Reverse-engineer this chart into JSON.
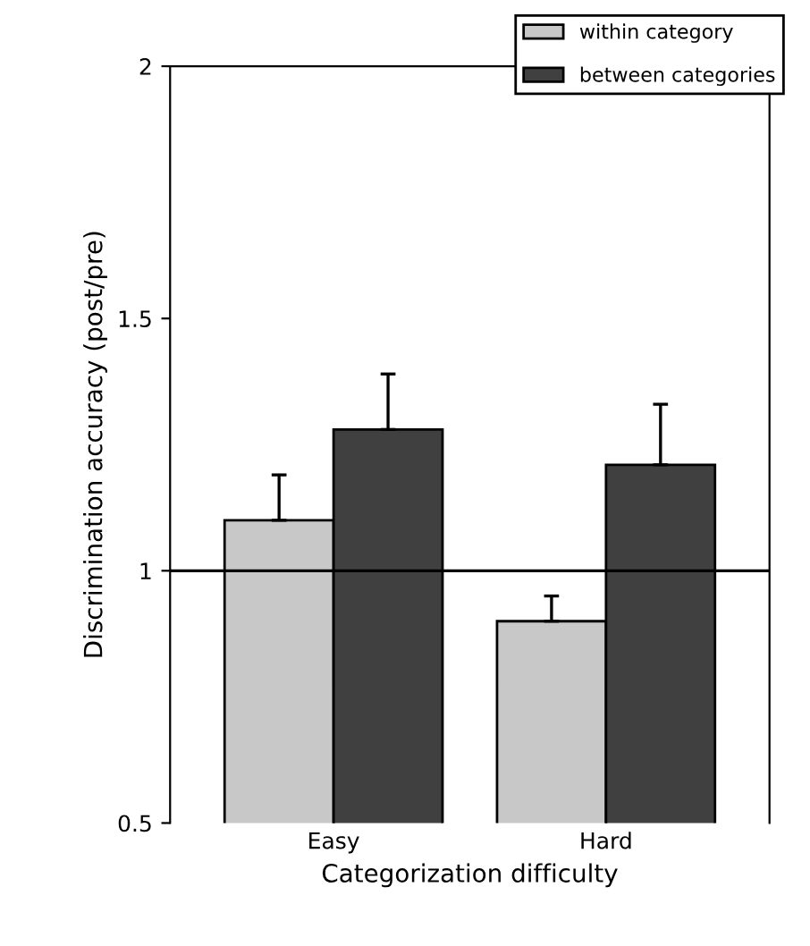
{
  "chart_data": {
    "type": "bar",
    "xlabel": "Categorization difficulty",
    "ylabel": "Discrimination accuracy (post/pre)",
    "categories": [
      "Easy",
      "Hard"
    ],
    "series": [
      {
        "name": "within category",
        "color": "#c8c8c8",
        "values": [
          1.1,
          0.9
        ],
        "errors": [
          [
            1.1,
            1.19
          ],
          [
            0.9,
            0.95
          ]
        ]
      },
      {
        "name": "between categories",
        "color": "#404040",
        "values": [
          1.28,
          1.21
        ],
        "errors": [
          [
            1.28,
            1.39
          ],
          [
            1.21,
            1.33
          ]
        ]
      }
    ],
    "ylim": [
      0.5,
      2
    ],
    "yticks": [
      0.5,
      1,
      1.5,
      2
    ],
    "ref_lines": [
      {
        "axis": "y",
        "value": 1,
        "color": "#000000"
      }
    ],
    "legend": "top right",
    "grid": false
  }
}
